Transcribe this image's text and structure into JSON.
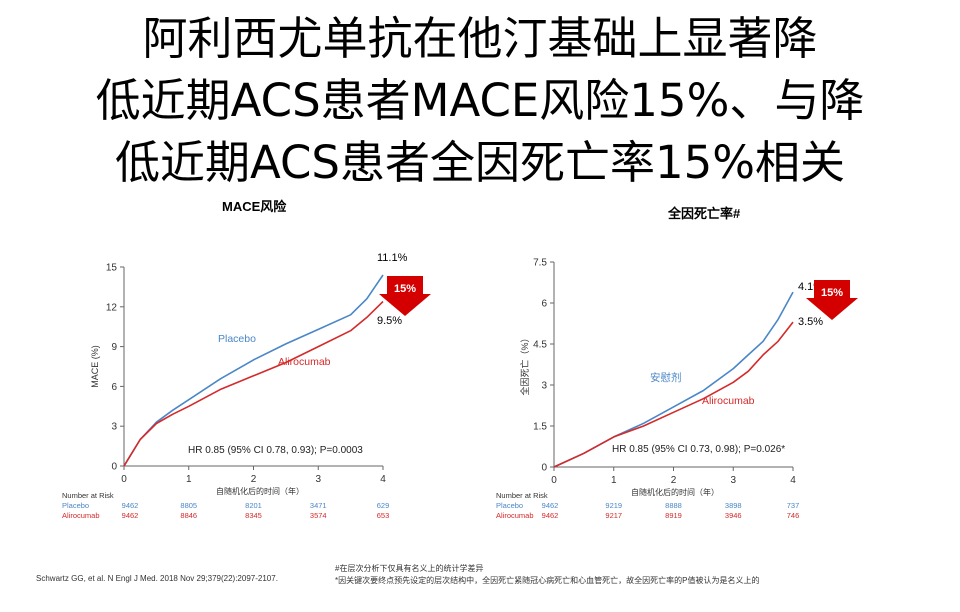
{
  "title": {
    "line1": "阿利西尤单抗在他汀基础上显著降",
    "line2": "低近期ACS患者MACE风险15%、与降",
    "line3": "低近期ACS患者全因死亡率15%相关"
  },
  "colors": {
    "placebo": "#4a86c8",
    "alirocumab": "#d42a2a",
    "axis": "#666666",
    "arrow": "#d40000"
  },
  "chart_data": [
    {
      "type": "line",
      "title": "MACE风险",
      "xlabel": "自随机化后的时间（年）",
      "ylabel": "MACE (%)",
      "xlim": [
        0,
        4
      ],
      "ylim": [
        0,
        15
      ],
      "xticks": [
        "0",
        "1",
        "2",
        "3",
        "4"
      ],
      "yticks": [
        "0",
        "3",
        "6",
        "9",
        "12",
        "15"
      ],
      "series": [
        {
          "name": "Placebo",
          "x": [
            0,
            0.25,
            0.5,
            0.75,
            1,
            1.5,
            2,
            2.5,
            3,
            3.5,
            3.75,
            4
          ],
          "values": [
            0,
            2.0,
            3.3,
            4.2,
            5.0,
            6.6,
            8.0,
            9.2,
            10.3,
            11.4,
            12.6,
            14.4
          ],
          "end_label": "11.1%"
        },
        {
          "name": "Alirocumab",
          "x": [
            0,
            0.25,
            0.5,
            0.75,
            1,
            1.5,
            2,
            2.5,
            3,
            3.5,
            3.75,
            4
          ],
          "values": [
            0,
            2.0,
            3.2,
            3.9,
            4.5,
            5.8,
            6.8,
            7.8,
            9.0,
            10.2,
            11.2,
            12.4
          ],
          "end_label": "9.5%"
        }
      ],
      "arrow_label": "15%",
      "annotation": "HR 0.85 (95% CI 0.78, 0.93); P=0.0003",
      "at_risk": {
        "header": "Number at Risk",
        "rows": [
          {
            "name": "Placebo",
            "values": [
              "9462",
              "8805",
              "8201",
              "3471",
              "629"
            ]
          },
          {
            "name": "Alirocumab",
            "values": [
              "9462",
              "8846",
              "8345",
              "3574",
              "653"
            ]
          }
        ]
      }
    },
    {
      "type": "line",
      "title": "全因死亡率#",
      "xlabel": "自随机化后的时间（年）",
      "ylabel": "全因死亡（%）",
      "xlim": [
        0,
        4
      ],
      "ylim": [
        0,
        7.5
      ],
      "xticks": [
        "0",
        "1",
        "2",
        "3",
        "4"
      ],
      "yticks": [
        "0",
        "1.5",
        "3",
        "4.5",
        "6",
        "7.5"
      ],
      "series": [
        {
          "name": "安慰剂",
          "x": [
            0,
            0.5,
            1,
            1.5,
            2,
            2.5,
            3,
            3.25,
            3.5,
            3.75,
            4
          ],
          "values": [
            0,
            0.5,
            1.1,
            1.6,
            2.2,
            2.8,
            3.6,
            4.1,
            4.6,
            5.4,
            6.4
          ],
          "end_label": "4.1%"
        },
        {
          "name": "Alirocumab",
          "x": [
            0,
            0.5,
            1,
            1.5,
            2,
            2.5,
            3,
            3.25,
            3.5,
            3.75,
            4
          ],
          "values": [
            0,
            0.5,
            1.1,
            1.5,
            2.0,
            2.5,
            3.1,
            3.5,
            4.1,
            4.6,
            5.3
          ],
          "end_label": "3.5%"
        }
      ],
      "arrow_label": "15%",
      "annotation": "HR 0.85 (95% CI 0.73, 0.98); P=0.026*",
      "at_risk": {
        "header": "Number at Risk",
        "rows": [
          {
            "name": "Placebo",
            "values": [
              "9462",
              "9219",
              "8888",
              "3898",
              "737"
            ]
          },
          {
            "name": "Alirocumab",
            "values": [
              "9462",
              "9217",
              "8919",
              "3946",
              "746"
            ]
          }
        ]
      }
    }
  ],
  "footnotes": {
    "citation": "Schwartz GG, et al. N Engl J Med. 2018 Nov 29;379(22):2097-2107.",
    "note1": "#在层次分析下仅具有名义上的统计学差异",
    "note2": "*因关键次要终点预先设定的层次结构中，全因死亡紧随冠心病死亡和心血管死亡，故全因死亡率的P值被认为是名义上的"
  }
}
